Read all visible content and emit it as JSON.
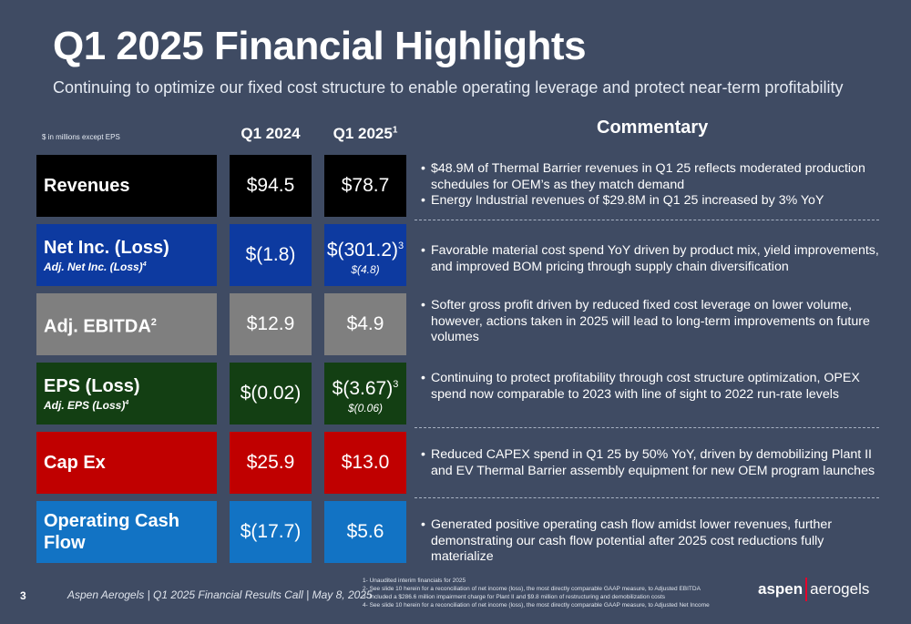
{
  "header": {
    "title": "Q1 2025 Financial Highlights",
    "subtitle": "Continuing to optimize our fixed cost structure to enable operating leverage and protect near-term profitability"
  },
  "table": {
    "units_note": "$ in millions except EPS",
    "col_q1_2024": "Q1 2024",
    "col_q1_2025": "Q1 2025",
    "col_q1_2025_sup": "1",
    "rows": [
      {
        "label": "Revenues",
        "q1_2024": "$94.5",
        "q1_2025": "$78.7"
      },
      {
        "label": "Net Inc. (Loss)",
        "sublabel": "Adj. Net Inc. (Loss)",
        "sublabel_sup": "4",
        "q1_2024": "$(1.8)",
        "q1_2025": "$(301.2)",
        "q1_2025_sup": "3",
        "q1_2025_sub": "$(4.8)"
      },
      {
        "label": "Adj. EBITDA",
        "label_sup": "2",
        "q1_2024": "$12.9",
        "q1_2025": "$4.9"
      },
      {
        "label": "EPS (Loss)",
        "sublabel": "Adj. EPS (Loss)",
        "sublabel_sup": "4",
        "q1_2024": "$(0.02)",
        "q1_2025": "$(3.67)",
        "q1_2025_sup": "3",
        "q1_2025_sub": "$(0.06)"
      },
      {
        "label": "Cap Ex",
        "q1_2024": "$25.9",
        "q1_2025": "$13.0"
      },
      {
        "label": "Operating Cash Flow",
        "q1_2024": "$(17.7)",
        "q1_2025": "$5.6"
      }
    ],
    "row_colors": [
      "#000000",
      "#0d3aa0",
      "#7f7f7f",
      "#133f13",
      "#c00000",
      "#1273c4"
    ]
  },
  "commentary": {
    "heading": "Commentary",
    "groups": [
      [
        "$48.9M of Thermal Barrier revenues in Q1 25 reflects moderated production schedules for OEM’s as they match demand",
        "Energy Industrial revenues of $29.8M in Q1 25 increased by 3% YoY"
      ],
      [
        "Favorable material cost spend YoY driven by product mix, yield improvements, and improved BOM pricing through supply chain diversification"
      ],
      [
        "Softer gross profit driven by reduced fixed cost leverage on lower volume, however, actions taken in 2025 will lead to long-term improvements on future volumes"
      ],
      [
        "Continuing to protect profitability through cost structure optimization, OPEX spend now comparable to 2023 with line of sight to 2022 run-rate levels"
      ],
      [
        "Reduced CAPEX spend in Q1 25 by 50% YoY, driven by demobilizing Plant II and EV Thermal Barrier assembly equipment for new OEM program launches"
      ],
      [
        "Generated positive operating cash flow amidst lower revenues, further demonstrating our cash flow potential after 2025 cost reductions fully materialize"
      ]
    ]
  },
  "footer": {
    "page_number": "3",
    "text": "Aspen Aerogels | Q1 2025 Financial Results Call | May 8, 2025",
    "footnotes": [
      "1- Unaudited interim financials for 2025",
      "2- See slide 10 herein for a reconciliation of net income (loss), the most directly comparable GAAP measure, to Adjusted EBITDA",
      "3- Included a $286.6 million impairment charge for Plant II and $9.8 million of restructuring and demobilization costs",
      "4- See slide 10 herein for a reconciliation of net income (loss), the most directly comparable GAAP measure, to Adjusted Net Income"
    ],
    "logo_left": "aspen",
    "logo_right": "aerogels"
  }
}
